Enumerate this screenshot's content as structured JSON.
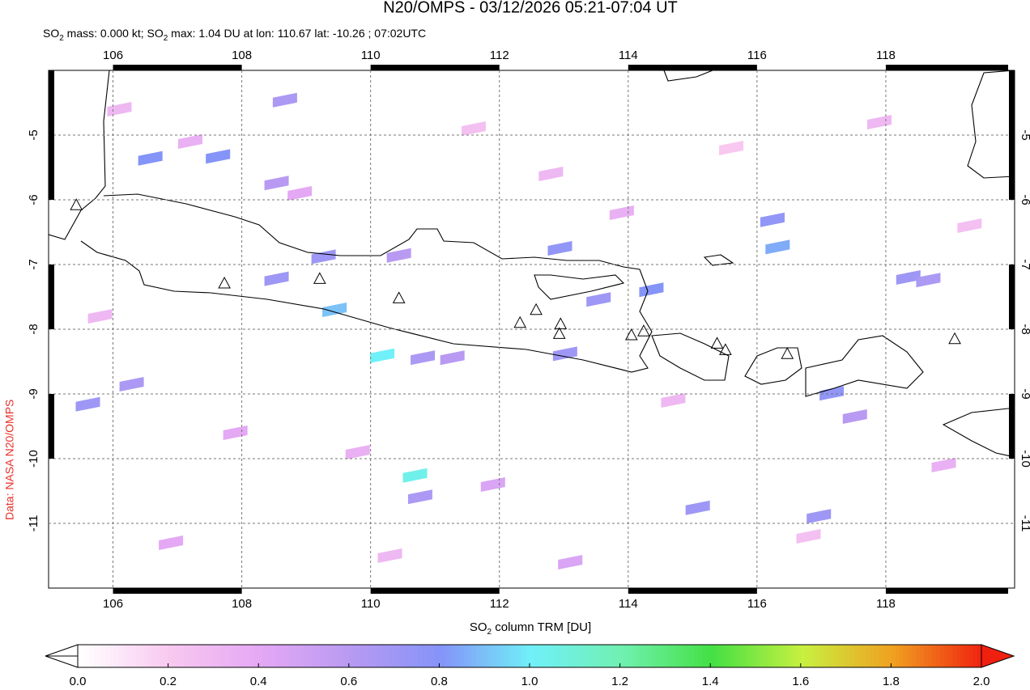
{
  "chart_data": {
    "type": "map",
    "title": "N20/OMPS - 03/12/2026 05:21-07:04 UT",
    "subtitle": [
      "SO",
      "2",
      " mass: 0.000 kt; SO",
      "2",
      " max: 1.04 DU at lon: 110.67 lat: -10.26 ; 07:02UTC"
    ],
    "source": "Data: NASA N20/OMPS",
    "xlim": [
      105,
      120
    ],
    "ylim": [
      -12,
      -4
    ],
    "xticks": [
      106,
      108,
      110,
      112,
      114,
      116,
      118
    ],
    "yticks": [
      -5,
      -6,
      -7,
      -8,
      -9,
      -10,
      -11
    ],
    "grid": true,
    "volcanoes": {
      "lon": [
        105.43,
        107.73,
        109.21,
        110.44,
        112.32,
        112.57,
        112.95,
        112.93,
        114.05,
        114.24,
        115.38,
        115.51,
        116.47,
        119.07
      ],
      "lat": [
        -6.09,
        -7.3,
        -7.23,
        -7.53,
        -7.91,
        -7.71,
        -7.93,
        -8.08,
        -8.1,
        -8.04,
        -8.23,
        -8.33,
        -8.39,
        -8.16
      ]
    },
    "cells": {
      "lon": [
        110.18,
        110.69,
        109.44,
        106.58,
        107.63,
        108.54,
        109.27,
        108.67,
        108.54,
        112.94,
        113.54,
        114.36,
        116.32,
        116.24,
        115.08,
        116.96,
        117.16,
        110.77,
        106.29,
        105.61,
        110.81,
        111.27,
        113.02,
        110.44,
        118.35,
        118.66,
        117.52,
        106.1,
        107.2,
        108.9,
        111.6,
        112.8,
        113.9,
        115.6,
        117.9,
        119.3,
        105.8,
        107.9,
        109.8,
        111.9,
        114.7,
        116.8,
        118.9,
        106.9,
        110.3,
        113.1
      ],
      "lat": [
        -8.41,
        -10.26,
        -7.7,
        -5.36,
        -5.33,
        -7.22,
        -6.88,
        -4.46,
        -5.74,
        -6.75,
        -7.54,
        -7.39,
        -6.73,
        -6.31,
        -10.76,
        -10.89,
        -8.99,
        -10.59,
        -8.85,
        -9.16,
        -8.44,
        -8.44,
        -8.38,
        -6.86,
        -7.2,
        -7.24,
        -9.35,
        -4.6,
        -5.1,
        -5.9,
        -4.9,
        -5.6,
        -6.2,
        -5.2,
        -4.8,
        -6.4,
        -7.8,
        -9.6,
        -9.9,
        -10.4,
        -9.1,
        -11.2,
        -10.1,
        -11.3,
        -11.5,
        -11.6
      ],
      "values": [
        1.0,
        1.04,
        0.9,
        0.8,
        0.8,
        0.7,
        0.7,
        0.65,
        0.6,
        0.75,
        0.7,
        0.8,
        0.85,
        0.75,
        0.7,
        0.7,
        0.75,
        0.65,
        0.65,
        0.7,
        0.65,
        0.6,
        0.7,
        0.6,
        0.7,
        0.65,
        0.6,
        0.3,
        0.35,
        0.4,
        0.25,
        0.3,
        0.35,
        0.2,
        0.3,
        0.25,
        0.3,
        0.4,
        0.35,
        0.45,
        0.3,
        0.25,
        0.35,
        0.4,
        0.3,
        0.45
      ]
    },
    "colorbar": {
      "label": [
        "SO",
        "2",
        " column TRM [DU]"
      ],
      "lim": [
        0,
        2
      ],
      "colors": [
        "#ffffff",
        "#f8c8f0",
        "#e4a8f4",
        "#b89af2",
        "#8494f8",
        "#70f0f8",
        "#70f0b0",
        "#44e044",
        "#c8f040",
        "#f0a020",
        "#f02010"
      ],
      "ticks": [
        {
          "value": 0,
          "label": "0.0"
        },
        {
          "value": 0.2,
          "label": "0.2"
        },
        {
          "value": 0.4,
          "label": "0.4"
        },
        {
          "value": 0.6,
          "label": "0.6"
        },
        {
          "value": 0.8,
          "label": "0.8"
        },
        {
          "value": 1,
          "label": "1.0"
        },
        {
          "value": 1.2,
          "label": "1.2"
        },
        {
          "value": 1.4,
          "label": "1.4"
        },
        {
          "value": 1.6,
          "label": "1.6"
        },
        {
          "value": 1.8,
          "label": "1.8"
        },
        {
          "value": 2,
          "label": "2.0"
        }
      ]
    }
  }
}
